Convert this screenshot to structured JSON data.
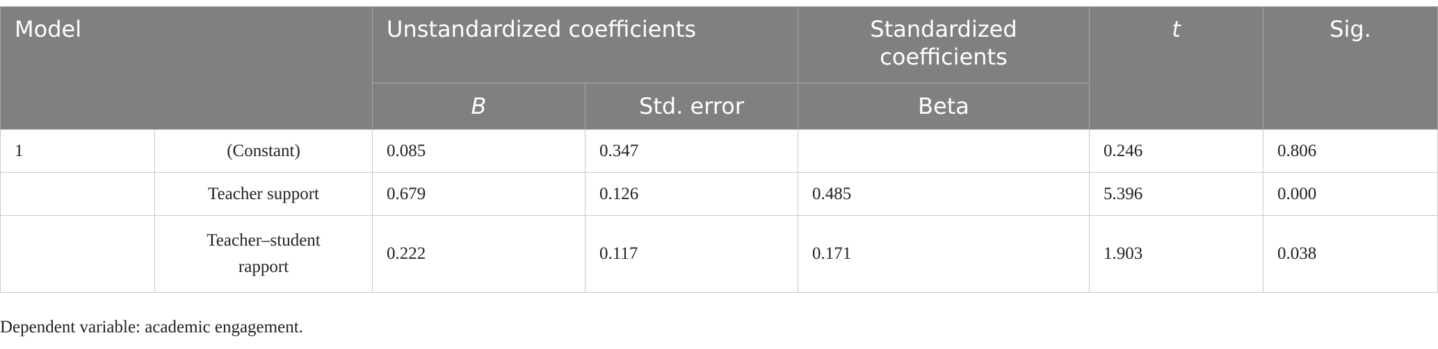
{
  "table": {
    "header": {
      "model": "Model",
      "unstandardized": "Unstandardized coefficients",
      "standardized": "Standardized coefficients",
      "t": "t",
      "sig": "Sig.",
      "b": "B",
      "se": "Std. error",
      "beta": "Beta"
    },
    "rows": [
      {
        "model": "1",
        "predictor": "(Constant)",
        "b": "0.085",
        "se": "0.347",
        "t": "0.246",
        "sig": "0.806"
      },
      {
        "predictor": "Teacher support",
        "b": "0.679",
        "se": "0.126",
        "beta": "0.485",
        "t": "5.396",
        "sig": "0.000"
      },
      {
        "predictor": "Teacher–student rapport",
        "b": "0.222",
        "se": "0.117",
        "beta": "0.171",
        "t": "1.903",
        "sig": "0.038"
      }
    ]
  },
  "footnote": "Dependent variable: academic engagement."
}
